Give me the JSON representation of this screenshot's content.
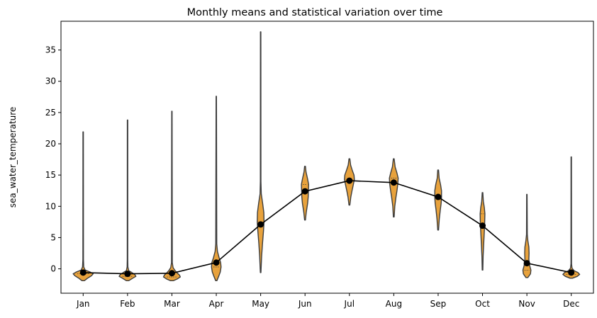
{
  "chart_data": {
    "type": "violin",
    "title": "Monthly means and statistical variation over time",
    "xlabel": "",
    "ylabel": "sea_water_temperature",
    "ylim": [
      -3.9,
      39.6
    ],
    "yticks": [
      0,
      5,
      10,
      15,
      20,
      25,
      30,
      35
    ],
    "categories": [
      "Jan",
      "Feb",
      "Mar",
      "Apr",
      "May",
      "Jun",
      "Jul",
      "Aug",
      "Sep",
      "Oct",
      "Nov",
      "Dec"
    ],
    "means": [
      -0.6,
      -0.8,
      -0.7,
      1.0,
      7.1,
      12.4,
      14.1,
      13.8,
      11.5,
      6.9,
      0.9,
      -0.6
    ],
    "distributions": [
      {
        "min": -1.9,
        "max": 21.9,
        "profile": [
          [
            -1.9,
            0.06
          ],
          [
            -1.5,
            0.22
          ],
          [
            -1.1,
            0.42
          ],
          [
            -0.8,
            0.5
          ],
          [
            -0.5,
            0.34
          ],
          [
            -0.2,
            0.1
          ],
          [
            0.3,
            0.03
          ],
          [
            1.5,
            0.015
          ],
          [
            21.9,
            0.01
          ]
        ]
      },
      {
        "min": -1.9,
        "max": 23.8,
        "profile": [
          [
            -1.9,
            0.06
          ],
          [
            -1.5,
            0.26
          ],
          [
            -1.2,
            0.42
          ],
          [
            -0.9,
            0.36
          ],
          [
            -0.6,
            0.22
          ],
          [
            -0.3,
            0.06
          ],
          [
            0.3,
            0.02
          ],
          [
            1.5,
            0.012
          ],
          [
            23.8,
            0.01
          ]
        ]
      },
      {
        "min": -1.9,
        "max": 25.2,
        "profile": [
          [
            -1.9,
            0.08
          ],
          [
            -1.6,
            0.28
          ],
          [
            -1.3,
            0.42
          ],
          [
            -1.0,
            0.38
          ],
          [
            -0.7,
            0.28
          ],
          [
            -0.3,
            0.16
          ],
          [
            0.2,
            0.06
          ],
          [
            1.0,
            0.02
          ],
          [
            25.2,
            0.01
          ]
        ]
      },
      {
        "min": -1.9,
        "max": 27.6,
        "profile": [
          [
            -1.9,
            0.03
          ],
          [
            -1.2,
            0.12
          ],
          [
            -0.5,
            0.2
          ],
          [
            0.3,
            0.24
          ],
          [
            1.0,
            0.22
          ],
          [
            1.8,
            0.14
          ],
          [
            2.8,
            0.06
          ],
          [
            4.0,
            0.025
          ],
          [
            27.6,
            0.01
          ]
        ]
      },
      {
        "min": -0.6,
        "max": 37.9,
        "profile": [
          [
            -0.6,
            0.015
          ],
          [
            2,
            0.05
          ],
          [
            4,
            0.09
          ],
          [
            6,
            0.14
          ],
          [
            7.5,
            0.17
          ],
          [
            9,
            0.16
          ],
          [
            10.5,
            0.1
          ],
          [
            12,
            0.03
          ],
          [
            14,
            0.015
          ],
          [
            37.9,
            0.01
          ]
        ]
      },
      {
        "min": 7.8,
        "max": 16.4,
        "profile": [
          [
            7.8,
            0.02
          ],
          [
            9,
            0.06
          ],
          [
            10.5,
            0.13
          ],
          [
            11.5,
            0.16
          ],
          [
            12.5,
            0.17
          ],
          [
            13.5,
            0.18
          ],
          [
            14.5,
            0.12
          ],
          [
            15.5,
            0.05
          ],
          [
            16.4,
            0.02
          ]
        ]
      },
      {
        "min": 10.2,
        "max": 17.6,
        "profile": [
          [
            10.2,
            0.02
          ],
          [
            11.5,
            0.07
          ],
          [
            12.5,
            0.13
          ],
          [
            13.5,
            0.2
          ],
          [
            14.3,
            0.25
          ],
          [
            15,
            0.23
          ],
          [
            15.8,
            0.14
          ],
          [
            16.6,
            0.06
          ],
          [
            17.6,
            0.02
          ]
        ]
      },
      {
        "min": 8.3,
        "max": 17.6,
        "profile": [
          [
            8.3,
            0.02
          ],
          [
            10,
            0.05
          ],
          [
            11.5,
            0.11
          ],
          [
            12.5,
            0.16
          ],
          [
            13.5,
            0.2
          ],
          [
            14.5,
            0.22
          ],
          [
            15.3,
            0.16
          ],
          [
            16.3,
            0.07
          ],
          [
            17.6,
            0.02
          ]
        ]
      },
      {
        "min": 6.2,
        "max": 15.8,
        "profile": [
          [
            6.2,
            0.02
          ],
          [
            8,
            0.06
          ],
          [
            9.5,
            0.11
          ],
          [
            10.5,
            0.15
          ],
          [
            11.5,
            0.17
          ],
          [
            12.5,
            0.17
          ],
          [
            13.5,
            0.12
          ],
          [
            14.5,
            0.05
          ],
          [
            15.8,
            0.02
          ]
        ]
      },
      {
        "min": -0.2,
        "max": 12.2,
        "profile": [
          [
            -0.2,
            0.015
          ],
          [
            2,
            0.03
          ],
          [
            4,
            0.06
          ],
          [
            6,
            0.09
          ],
          [
            7.5,
            0.11
          ],
          [
            8.8,
            0.12
          ],
          [
            9.8,
            0.09
          ],
          [
            10.8,
            0.04
          ],
          [
            12.2,
            0.015
          ]
        ]
      },
      {
        "min": -1.4,
        "max": 11.9,
        "profile": [
          [
            -1.4,
            0.05
          ],
          [
            -0.8,
            0.18
          ],
          [
            -0.2,
            0.2
          ],
          [
            0.5,
            0.14
          ],
          [
            1.5,
            0.1
          ],
          [
            2.5,
            0.11
          ],
          [
            3.5,
            0.1
          ],
          [
            4.5,
            0.05
          ],
          [
            5.5,
            0.02
          ],
          [
            11.9,
            0.01
          ]
        ]
      },
      {
        "min": -1.5,
        "max": 17.9,
        "profile": [
          [
            -1.5,
            0.06
          ],
          [
            -1.2,
            0.3
          ],
          [
            -0.9,
            0.42
          ],
          [
            -0.6,
            0.34
          ],
          [
            -0.3,
            0.14
          ],
          [
            0.1,
            0.04
          ],
          [
            0.8,
            0.015
          ],
          [
            17.9,
            0.01
          ]
        ]
      }
    ],
    "colors": {
      "violin_fill": "#e8a23c",
      "violin_edge": "#3d3d3d",
      "mean_line": "#000000",
      "axis": "#000000"
    },
    "grid": false,
    "legend": "none"
  }
}
